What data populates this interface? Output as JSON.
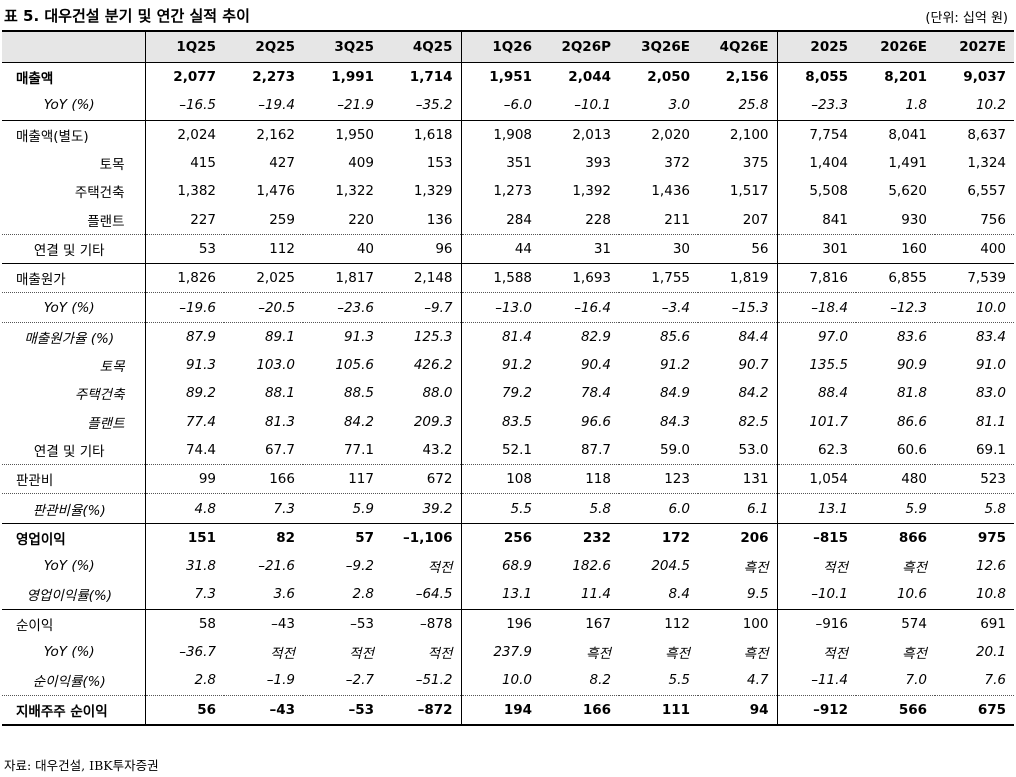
{
  "header": {
    "title": "표 5. 대우건설 분기 및 연간 실적 추이",
    "unit": "(단위: 십억 원)"
  },
  "table": {
    "columns": [
      "1Q25",
      "2Q25",
      "3Q25",
      "4Q25",
      "1Q26",
      "2Q26P",
      "3Q26E",
      "4Q26E",
      "2025",
      "2026E",
      "2027E"
    ],
    "rows": [
      {
        "label": "매출액",
        "values": [
          "2,077",
          "2,273",
          "1,991",
          "1,714",
          "1,951",
          "2,044",
          "2,050",
          "2,156",
          "8,055",
          "8,201",
          "9,037"
        ]
      },
      {
        "label": "YoY (%)",
        "values": [
          "–16.5",
          "–19.4",
          "–21.9",
          "–35.2",
          "–6.0",
          "–10.1",
          "3.0",
          "25.8",
          "–23.3",
          "1.8",
          "10.2"
        ]
      },
      {
        "label": "매출액(별도)",
        "values": [
          "2,024",
          "2,162",
          "1,950",
          "1,618",
          "1,908",
          "2,013",
          "2,020",
          "2,100",
          "7,754",
          "8,041",
          "8,637"
        ]
      },
      {
        "label": "토목",
        "values": [
          "415",
          "427",
          "409",
          "153",
          "351",
          "393",
          "372",
          "375",
          "1,404",
          "1,491",
          "1,324"
        ]
      },
      {
        "label": "주택건축",
        "values": [
          "1,382",
          "1,476",
          "1,322",
          "1,329",
          "1,273",
          "1,392",
          "1,436",
          "1,517",
          "5,508",
          "5,620",
          "6,557"
        ]
      },
      {
        "label": "플랜트",
        "values": [
          "227",
          "259",
          "220",
          "136",
          "284",
          "228",
          "211",
          "207",
          "841",
          "930",
          "756"
        ]
      },
      {
        "label": "연결 및 기타",
        "values": [
          "53",
          "112",
          "40",
          "96",
          "44",
          "31",
          "30",
          "56",
          "301",
          "160",
          "400"
        ]
      },
      {
        "label": "매출원가",
        "values": [
          "1,826",
          "2,025",
          "1,817",
          "2,148",
          "1,588",
          "1,693",
          "1,755",
          "1,819",
          "7,816",
          "6,855",
          "7,539"
        ]
      },
      {
        "label": "YoY (%)",
        "values": [
          "–19.6",
          "–20.5",
          "–23.6",
          "–9.7",
          "–13.0",
          "–16.4",
          "–3.4",
          "–15.3",
          "–18.4",
          "–12.3",
          "10.0"
        ]
      },
      {
        "label": "매출원가율 (%)",
        "values": [
          "87.9",
          "89.1",
          "91.3",
          "125.3",
          "81.4",
          "82.9",
          "85.6",
          "84.4",
          "97.0",
          "83.6",
          "83.4"
        ]
      },
      {
        "label": "토목",
        "values": [
          "91.3",
          "103.0",
          "105.6",
          "426.2",
          "91.2",
          "90.4",
          "91.2",
          "90.7",
          "135.5",
          "90.9",
          "91.0"
        ]
      },
      {
        "label": "주택건축",
        "values": [
          "89.2",
          "88.1",
          "88.5",
          "88.0",
          "79.2",
          "78.4",
          "84.9",
          "84.2",
          "88.4",
          "81.8",
          "83.0"
        ]
      },
      {
        "label": "플랜트",
        "values": [
          "77.4",
          "81.3",
          "84.2",
          "209.3",
          "83.5",
          "96.6",
          "84.3",
          "82.5",
          "101.7",
          "86.6",
          "81.1"
        ]
      },
      {
        "label": "연결 및 기타",
        "values": [
          "74.4",
          "67.7",
          "77.1",
          "43.2",
          "52.1",
          "87.7",
          "59.0",
          "53.0",
          "62.3",
          "60.6",
          "69.1"
        ]
      },
      {
        "label": "판관비",
        "values": [
          "99",
          "166",
          "117",
          "672",
          "108",
          "118",
          "123",
          "131",
          "1,054",
          "480",
          "523"
        ]
      },
      {
        "label": "판관비율(%)",
        "values": [
          "4.8",
          "7.3",
          "5.9",
          "39.2",
          "5.5",
          "5.8",
          "6.0",
          "6.1",
          "13.1",
          "5.9",
          "5.8"
        ]
      },
      {
        "label": "영업이익",
        "values": [
          "151",
          "82",
          "57",
          "–1,106",
          "256",
          "232",
          "172",
          "206",
          "–815",
          "866",
          "975"
        ]
      },
      {
        "label": "YoY (%)",
        "values": [
          "31.8",
          "–21.6",
          "–9.2",
          "적전",
          "68.9",
          "182.6",
          "204.5",
          "흑전",
          "적전",
          "흑전",
          "12.6"
        ]
      },
      {
        "label": "영업이익률(%)",
        "values": [
          "7.3",
          "3.6",
          "2.8",
          "–64.5",
          "13.1",
          "11.4",
          "8.4",
          "9.5",
          "–10.1",
          "10.6",
          "10.8"
        ]
      },
      {
        "label": "순이익",
        "values": [
          "58",
          "–43",
          "–53",
          "–878",
          "196",
          "167",
          "112",
          "100",
          "–916",
          "574",
          "691"
        ]
      },
      {
        "label": "YoY (%)",
        "values": [
          "–36.7",
          "적전",
          "적전",
          "적전",
          "237.9",
          "흑전",
          "흑전",
          "흑전",
          "적전",
          "흑전",
          "20.1"
        ]
      },
      {
        "label": "순이익률(%)",
        "values": [
          "2.8",
          "–1.9",
          "–2.7",
          "–51.2",
          "10.0",
          "8.2",
          "5.5",
          "4.7",
          "–11.4",
          "7.0",
          "7.6"
        ]
      },
      {
        "label": "지배주주 순이익",
        "values": [
          "56",
          "–43",
          "–53",
          "–872",
          "194",
          "166",
          "111",
          "94",
          "–912",
          "566",
          "675"
        ]
      }
    ]
  },
  "source": "자료: 대우건설, IBK투자증권"
}
